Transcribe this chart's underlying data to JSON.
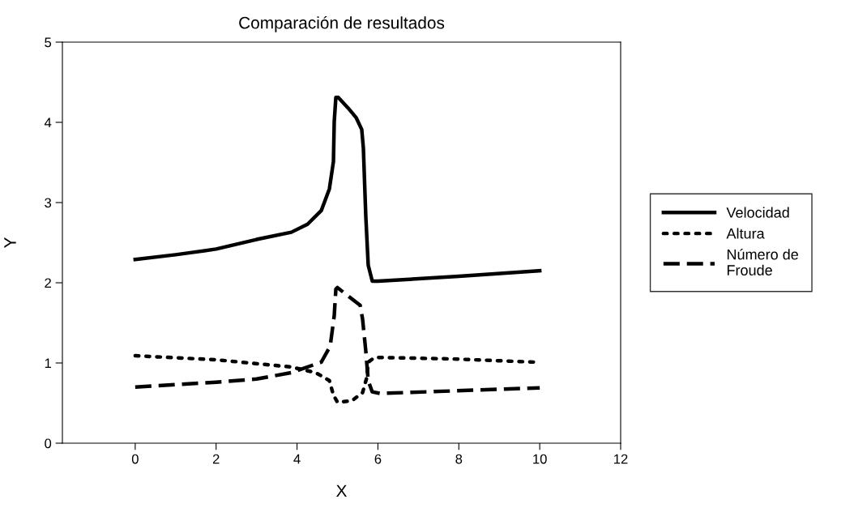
{
  "chart_data": {
    "type": "line",
    "title": "Comparación de resultados",
    "xlabel": "X",
    "ylabel": "Y",
    "xlim": [
      -1.8,
      12
    ],
    "xticks": [
      0,
      2,
      4,
      6,
      8,
      10,
      12
    ],
    "ylim": [
      0,
      5
    ],
    "yticks": [
      0,
      1,
      2,
      3,
      4,
      5
    ],
    "grid": false,
    "legend": "right",
    "marker": "none",
    "series": [
      {
        "name": "Velocidad",
        "color": "#000000",
        "line_style": "solid",
        "x": [
          0,
          1,
          2,
          3,
          3.86,
          4.26,
          4.6,
          4.8,
          4.9,
          4.92,
          4.96,
          5.02,
          5.26,
          5.46,
          5.6,
          5.64,
          5.7,
          5.76,
          5.86,
          6.0,
          8,
          10
        ],
        "values": [
          2.29,
          2.35,
          2.42,
          2.54,
          2.63,
          2.73,
          2.9,
          3.17,
          3.51,
          4.01,
          4.31,
          4.31,
          4.18,
          4.06,
          3.91,
          3.68,
          2.83,
          2.22,
          2.02,
          2.02,
          2.08,
          2.15
        ]
      },
      {
        "name": "Altura",
        "color": "#000000",
        "line_style": "dotted",
        "x": [
          0,
          2,
          3.86,
          4.46,
          4.8,
          4.9,
          5.0,
          5.36,
          5.62,
          5.72,
          5.76,
          5.92,
          7.86,
          9.9
        ],
        "values": [
          1.09,
          1.04,
          0.95,
          0.88,
          0.78,
          0.6,
          0.51,
          0.53,
          0.63,
          0.81,
          1.01,
          1.07,
          1.05,
          1.01
        ]
      },
      {
        "name": "Número de Froude",
        "color": "#000000",
        "line_style": "dashed",
        "x": [
          0,
          2,
          3,
          3.86,
          4.6,
          4.82,
          4.92,
          4.96,
          5.0,
          5.3,
          5.56,
          5.62,
          5.7,
          5.76,
          5.86,
          6.06,
          10
        ],
        "values": [
          0.7,
          0.76,
          0.8,
          0.88,
          1.01,
          1.21,
          1.59,
          1.92,
          1.94,
          1.82,
          1.72,
          1.55,
          1.15,
          0.78,
          0.64,
          0.62,
          0.69
        ]
      }
    ]
  }
}
